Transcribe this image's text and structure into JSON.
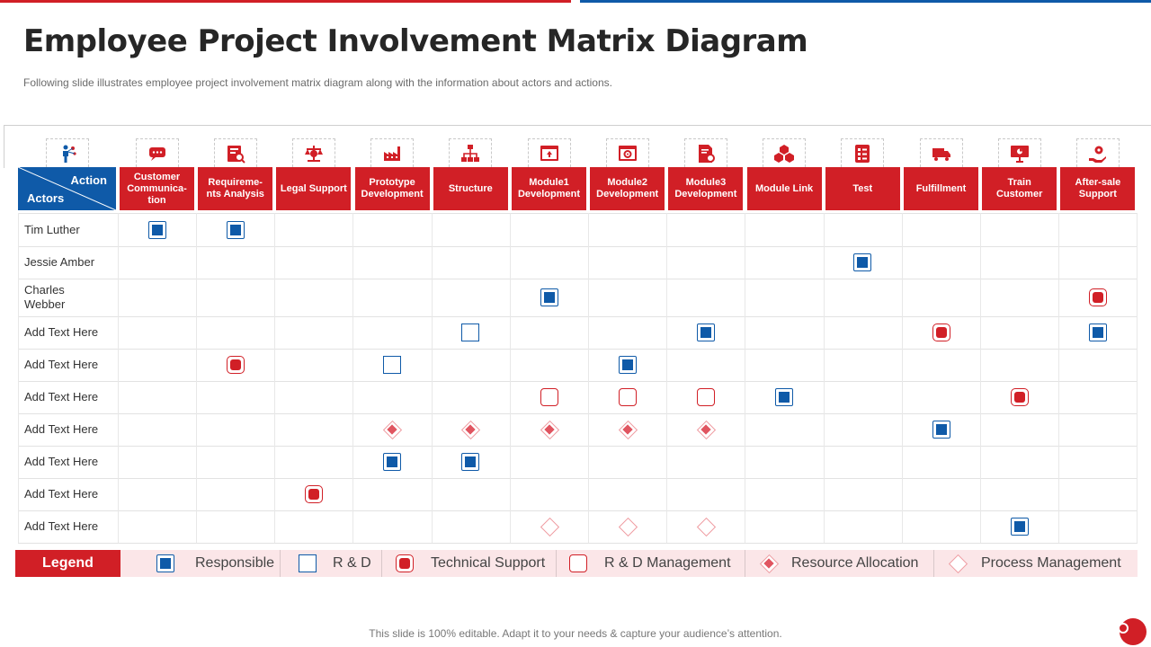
{
  "header": {
    "title": "Employee Project Involvement Matrix Diagram",
    "subtitle": "Following slide illustrates employee project involvement matrix diagram along with the information about actors and actions."
  },
  "corner": {
    "action_label": "Action",
    "actors_label": "Actors"
  },
  "columns": [
    {
      "label": "Customer Communica-tion",
      "icon": "chat-icon"
    },
    {
      "label": "Requireme-nts Analysis",
      "icon": "analysis-icon"
    },
    {
      "label": "Legal Support",
      "icon": "scales-icon"
    },
    {
      "label": "Prototype Development",
      "icon": "factory-icon"
    },
    {
      "label": "Structure",
      "icon": "hierarchy-icon"
    },
    {
      "label": "Module1 Development",
      "icon": "browser-upload-icon"
    },
    {
      "label": "Module2 Development",
      "icon": "browser-gear-icon"
    },
    {
      "label": "Module3 Development",
      "icon": "document-gear-icon"
    },
    {
      "label": "Module Link",
      "icon": "cubes-icon"
    },
    {
      "label": "Test",
      "icon": "checklist-icon"
    },
    {
      "label": "Fulfillment",
      "icon": "truck-icon"
    },
    {
      "label": "Train Customer",
      "icon": "presentation-icon"
    },
    {
      "label": "After-sale Support",
      "icon": "hand-gear-icon"
    }
  ],
  "actor_icon": "person-network-icon",
  "rows": [
    {
      "label": "Tim Luther"
    },
    {
      "label": "Jessie Amber"
    },
    {
      "label": "Charles Webber"
    },
    {
      "label": "Add Text Here"
    },
    {
      "label": "Add Text Here"
    },
    {
      "label": "Add Text Here"
    },
    {
      "label": "Add Text Here"
    },
    {
      "label": "Add Text Here"
    },
    {
      "label": "Add Text Here"
    },
    {
      "label": "Add Text Here"
    }
  ],
  "cells": [
    {
      "row": 0,
      "col": 0,
      "type": "responsible"
    },
    {
      "row": 0,
      "col": 1,
      "type": "responsible"
    },
    {
      "row": 1,
      "col": 9,
      "type": "responsible"
    },
    {
      "row": 2,
      "col": 5,
      "type": "responsible"
    },
    {
      "row": 2,
      "col": 12,
      "type": "technical-support"
    },
    {
      "row": 3,
      "col": 4,
      "type": "r-and-d"
    },
    {
      "row": 3,
      "col": 7,
      "type": "responsible"
    },
    {
      "row": 3,
      "col": 10,
      "type": "technical-support"
    },
    {
      "row": 3,
      "col": 12,
      "type": "responsible"
    },
    {
      "row": 4,
      "col": 1,
      "type": "technical-support"
    },
    {
      "row": 4,
      "col": 3,
      "type": "r-and-d"
    },
    {
      "row": 4,
      "col": 6,
      "type": "responsible"
    },
    {
      "row": 5,
      "col": 5,
      "type": "r-and-d-management"
    },
    {
      "row": 5,
      "col": 6,
      "type": "r-and-d-management"
    },
    {
      "row": 5,
      "col": 7,
      "type": "r-and-d-management"
    },
    {
      "row": 5,
      "col": 8,
      "type": "responsible"
    },
    {
      "row": 5,
      "col": 11,
      "type": "technical-support"
    },
    {
      "row": 6,
      "col": 3,
      "type": "resource-allocation"
    },
    {
      "row": 6,
      "col": 4,
      "type": "resource-allocation"
    },
    {
      "row": 6,
      "col": 5,
      "type": "resource-allocation"
    },
    {
      "row": 6,
      "col": 6,
      "type": "resource-allocation"
    },
    {
      "row": 6,
      "col": 7,
      "type": "resource-allocation"
    },
    {
      "row": 6,
      "col": 10,
      "type": "responsible"
    },
    {
      "row": 7,
      "col": 3,
      "type": "responsible"
    },
    {
      "row": 7,
      "col": 4,
      "type": "responsible"
    },
    {
      "row": 8,
      "col": 2,
      "type": "technical-support"
    },
    {
      "row": 9,
      "col": 5,
      "type": "process-management"
    },
    {
      "row": 9,
      "col": 6,
      "type": "process-management"
    },
    {
      "row": 9,
      "col": 7,
      "type": "process-management"
    },
    {
      "row": 9,
      "col": 11,
      "type": "responsible"
    }
  ],
  "legend": {
    "title": "Legend",
    "items": [
      {
        "type": "responsible",
        "label": "Responsible"
      },
      {
        "type": "r-and-d",
        "label": "R & D"
      },
      {
        "type": "technical-support",
        "label": "Technical Support"
      },
      {
        "type": "r-and-d-management",
        "label": "R & D Management"
      },
      {
        "type": "resource-allocation",
        "label": "Resource Allocation"
      },
      {
        "type": "process-management",
        "label": "Process Management"
      }
    ]
  },
  "colors": {
    "red": "#d11f26",
    "blue": "#0f5aa8",
    "legend_bg": "#fbe6e8"
  },
  "footer": {
    "text": "This slide is 100% editable. Adapt it to your needs & capture your audience’s attention."
  }
}
